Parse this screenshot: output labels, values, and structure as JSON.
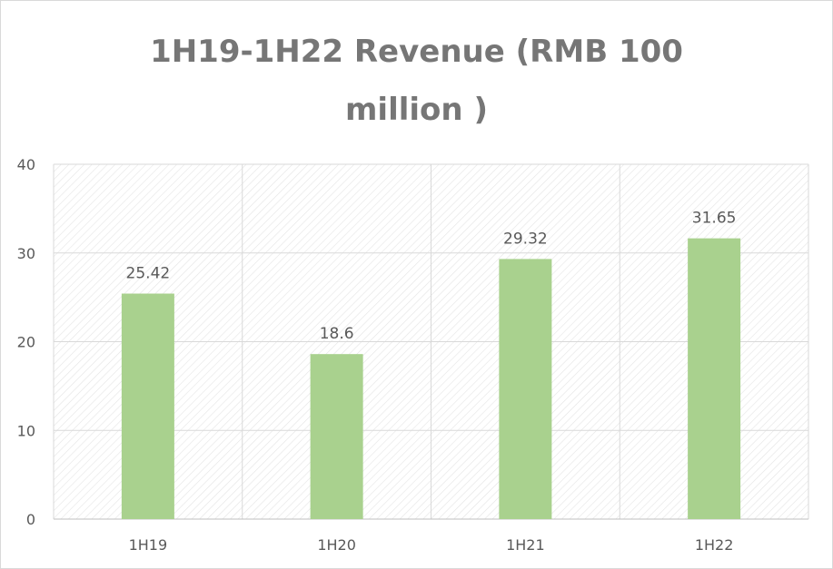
{
  "chart_data": {
    "type": "bar",
    "title_lines": [
      "1H19-1H22 Revenue (RMB 100",
      "million )"
    ],
    "categories": [
      "1H19",
      "1H20",
      "1H21",
      "1H22"
    ],
    "values": [
      25.42,
      18.6,
      29.32,
      31.65
    ],
    "data_labels": [
      "25.42",
      "18.6",
      "29.32",
      "31.65"
    ],
    "xlabel": "",
    "ylabel": "",
    "ylim": [
      0,
      40
    ],
    "yticks": [
      0,
      10,
      20,
      30,
      40
    ],
    "ytick_labels": [
      "0",
      "10",
      "20",
      "30",
      "40"
    ],
    "grid": true,
    "legend": "none",
    "bar_color": "#a9d18e",
    "grid_color": "#d9d9d9",
    "text_color": "#595959"
  }
}
